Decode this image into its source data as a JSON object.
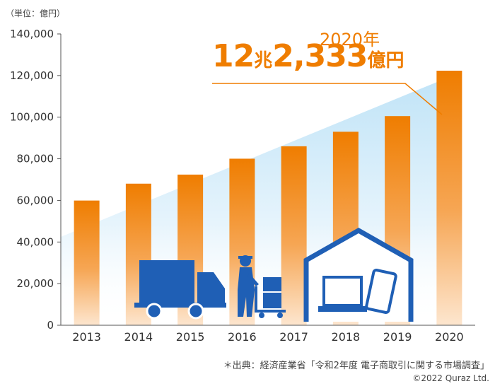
{
  "chart_data": {
    "type": "bar",
    "unit_label": "（単位：億円）",
    "categories": [
      "2013",
      "2014",
      "2015",
      "2016",
      "2017",
      "2018",
      "2019",
      "2020"
    ],
    "values": [
      59931,
      68043,
      72398,
      80043,
      86008,
      92992,
      100515,
      122333
    ],
    "ylim": [
      0,
      140000
    ],
    "yticks": [
      "0",
      "20,000",
      "40,000",
      "60,000",
      "80,000",
      "100,000",
      "120,000",
      "140,000"
    ],
    "bar_color": "#ef7d00",
    "icon_color": "#1f5fb5",
    "annotation": {
      "year": "2020年",
      "amount_number_1": "12",
      "amount_unit_1": "兆",
      "amount_number_2": "2,333",
      "amount_unit_2": "億円"
    },
    "grid": false
  },
  "source": "＊出典：経済産業省「令和2年度 電子商取引に関する市場調査」",
  "copyright": "©2022 Quraz Ltd.",
  "icons": [
    "delivery-truck-icon",
    "delivery-worker-icon",
    "house-icon",
    "laptop-icon",
    "smartphone-icon"
  ]
}
